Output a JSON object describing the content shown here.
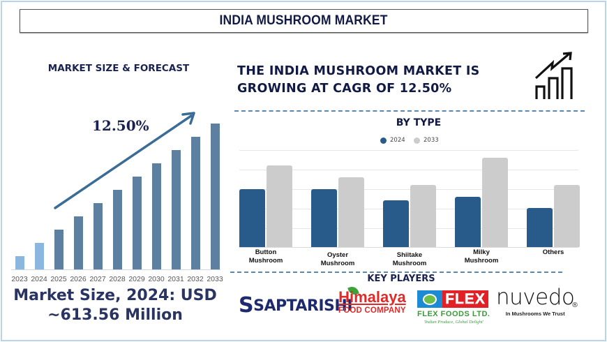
{
  "title": "INDIA MUSHROOM MARKET",
  "left_panel": {
    "heading": "MARKET SIZE & FORECAST",
    "cagr_label": "12.50%",
    "market_size_line1": "Market Size, 2024: USD",
    "market_size_line2": "~613.56 Million"
  },
  "headline": {
    "line1": "THE INDIA MUSHROOM MARKET IS",
    "line2": "GROWING AT CAGR OF 12.50%",
    "icon": "growth-chart-icon"
  },
  "by_type": {
    "heading": "BY TYPE",
    "legend": [
      {
        "label": "2024",
        "color": "#285b8a"
      },
      {
        "label": "2033",
        "color": "#cccccc"
      }
    ]
  },
  "key_players": {
    "heading": "KEY PLAYERS",
    "logos": [
      {
        "name": "SAPTARISHI"
      },
      {
        "name": "Himalaya",
        "subtitle": "FOOD COMPANY"
      },
      {
        "name": "FLEX",
        "subtitle": "FLEX FOODS LTD.",
        "tagline": "'Indian Produce, Global Delight'"
      },
      {
        "name": "nuvedo",
        "subtitle": "In Mushrooms We Trust",
        "mark": "®"
      }
    ]
  },
  "colors": {
    "title_text": "#111a44",
    "historical_bar": "#8bb6de",
    "forecast_bar": "#5e80a0",
    "type_2024": "#285b8a",
    "type_2033": "#cccccc",
    "arrow": "#3b6c96",
    "divider": "#5a88ae"
  },
  "chart_data": [
    {
      "type": "bar",
      "title": "MARKET SIZE & FORECAST",
      "categories": [
        "2023",
        "2024",
        "2025",
        "2026",
        "2027",
        "2028",
        "2029",
        "2030",
        "2031",
        "2032",
        "2033"
      ],
      "values": [
        1,
        2,
        3,
        4,
        5,
        6,
        7,
        8,
        9,
        10,
        11
      ],
      "value_note": "Relative bar heights (illustrative, no y-axis scale shown); 2023-2024 historical (light blue), 2025-2033 forecast (dark blue)",
      "annotation": "12.50% (CAGR arrow)",
      "xlabel": "",
      "ylabel": "",
      "grid": false
    },
    {
      "type": "bar",
      "title": "BY TYPE",
      "categories": [
        "Button Mushroom",
        "Oyster Mushroom",
        "Shiitake Mushroom",
        "Milky Mushroom",
        "Others"
      ],
      "series": [
        {
          "name": "2024",
          "values": [
            3.0,
            3.0,
            2.4,
            2.6,
            2.0
          ]
        },
        {
          "name": "2033",
          "values": [
            4.2,
            3.6,
            3.2,
            4.6,
            3.2
          ]
        }
      ],
      "value_note": "Relative heights in gridline units (no axis labels shown)",
      "ylim": [
        0,
        5
      ],
      "grid": true,
      "legend_position": "top"
    }
  ]
}
